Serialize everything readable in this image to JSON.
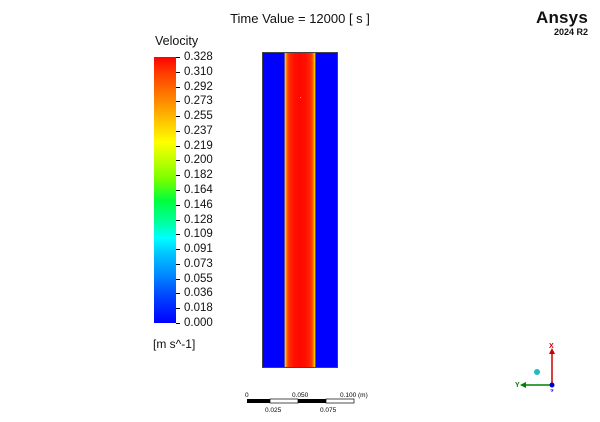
{
  "header": {
    "time_value": "Time Value = 12000 [ s ]"
  },
  "branding": {
    "name": "Ansys",
    "version": "2024 R2"
  },
  "legend": {
    "title": "Velocity",
    "units": "[m s^-1]",
    "tick_labels": [
      "0.328",
      "0.310",
      "0.292",
      "0.273",
      "0.255",
      "0.237",
      "0.219",
      "0.200",
      "0.182",
      "0.164",
      "0.146",
      "0.128",
      "0.109",
      "0.091",
      "0.073",
      "0.055",
      "0.036",
      "0.018",
      "0.000"
    ],
    "colormap": [
      "#ff0000",
      "#ff7800",
      "#ffff00",
      "#00ff3c",
      "#00ffff",
      "#0088ff",
      "#0000ff"
    ]
  },
  "scale_bar": {
    "top_labels": [
      "0",
      "0.050",
      "0.100",
      "(m)"
    ],
    "bottom_labels": [
      "0.025",
      "0.075"
    ]
  },
  "axes": {
    "x": "X",
    "y": "Y",
    "z": "Z",
    "colors": {
      "x": "#cc0000",
      "y": "#008000",
      "z": "#0000cc"
    }
  }
}
